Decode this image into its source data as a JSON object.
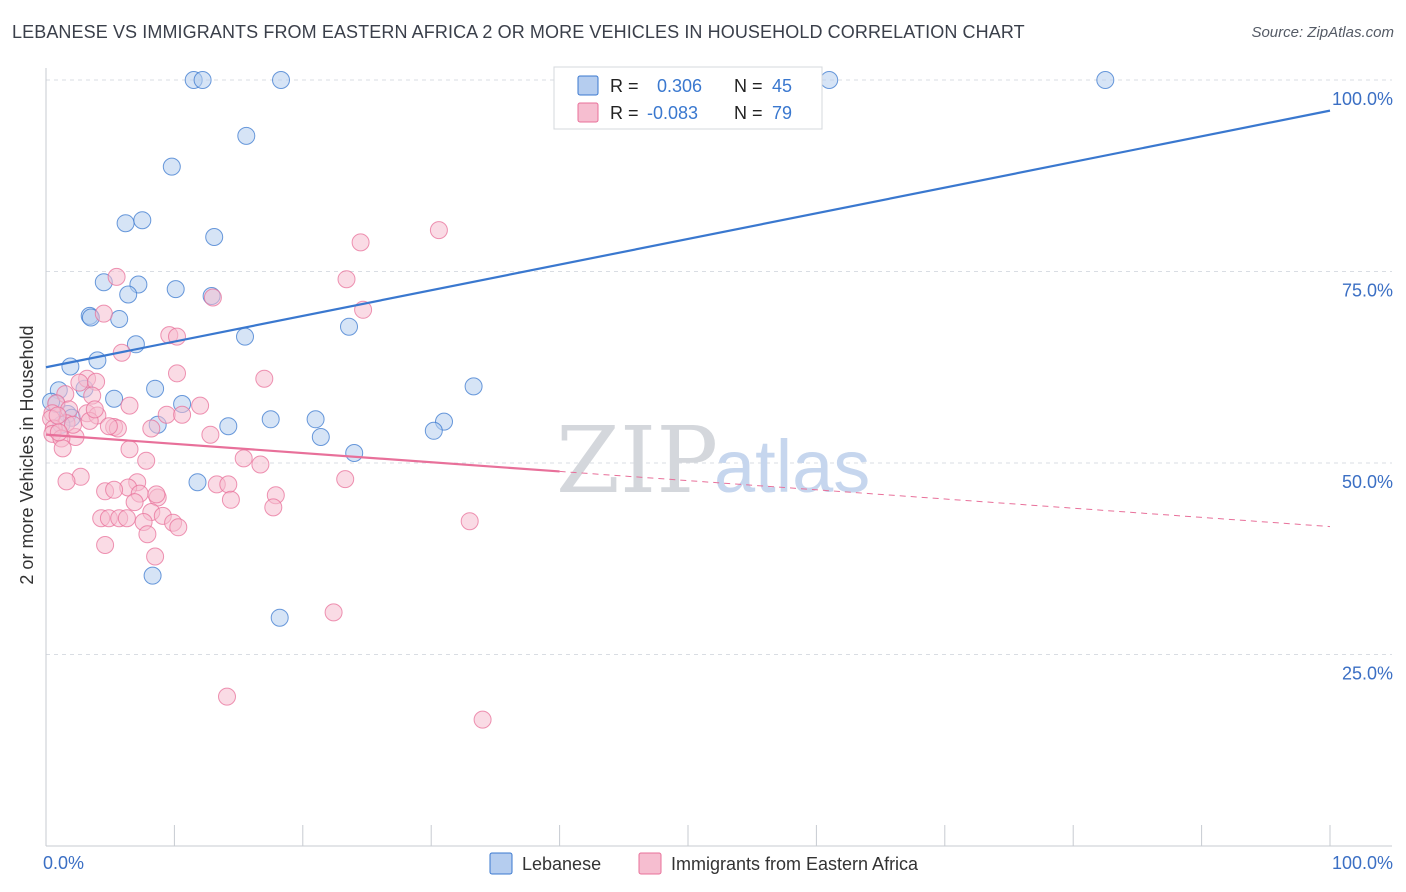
{
  "title": "LEBANESE VS IMMIGRANTS FROM EASTERN AFRICA 2 OR MORE VEHICLES IN HOUSEHOLD CORRELATION CHART",
  "source": "Source: ZipAtlas.com",
  "watermark": {
    "zip": "ZIP",
    "atlas": "atlas"
  },
  "colors": {
    "blue": "#3a78cf",
    "blue_fill": "#b5cdef",
    "pink": "#e8709a",
    "pink_fill": "#f6bed0",
    "axis_label": "#3b6fc4",
    "grid": "#d9dde3"
  },
  "chart_data": {
    "type": "scatter",
    "title": "LEBANESE VS IMMIGRANTS FROM EASTERN AFRICA 2 OR MORE VEHICLES IN HOUSEHOLD CORRELATION CHART",
    "ylabel": "2 or more Vehicles in Household",
    "xlim": [
      0,
      100
    ],
    "ylim": [
      0,
      100
    ],
    "x_tick_labels": [
      "0.0%",
      "100.0%"
    ],
    "y_tick_labels": [
      "100.0%",
      "75.0%",
      "50.0%",
      "25.0%"
    ],
    "y_ticks": [
      100,
      75,
      50,
      25
    ],
    "legend_stats": [
      {
        "r_label": "R =",
        "r_value": "0.306",
        "n_label": "N =",
        "n_value": "45"
      },
      {
        "r_label": "R =",
        "r_value": "-0.083",
        "n_label": "N =",
        "n_value": "79"
      }
    ],
    "series": [
      {
        "name": "Lebanese",
        "trend": {
          "x": [
            0,
            100
          ],
          "y": [
            62.5,
            96.0
          ],
          "dashed_from": null
        },
        "points": [
          [
            11.5,
            100
          ],
          [
            12.2,
            100
          ],
          [
            18.3,
            100
          ],
          [
            61,
            100
          ],
          [
            82.5,
            100
          ],
          [
            15.6,
            92.7
          ],
          [
            9.8,
            88.7
          ],
          [
            6.2,
            81.3
          ],
          [
            7.5,
            81.7
          ],
          [
            13.1,
            79.5
          ],
          [
            4.5,
            73.6
          ],
          [
            7.2,
            73.3
          ],
          [
            10.1,
            72.7
          ],
          [
            6.4,
            72.0
          ],
          [
            12.9,
            71.8
          ],
          [
            3.4,
            69.2
          ],
          [
            3.5,
            69.0
          ],
          [
            5.7,
            68.8
          ],
          [
            23.6,
            67.8
          ],
          [
            15.5,
            66.5
          ],
          [
            7.0,
            65.5
          ],
          [
            4.0,
            63.4
          ],
          [
            1.9,
            62.6
          ],
          [
            1.0,
            59.5
          ],
          [
            3.0,
            59.7
          ],
          [
            8.5,
            59.7
          ],
          [
            33.3,
            60.0
          ],
          [
            5.3,
            58.4
          ],
          [
            0.8,
            57.7
          ],
          [
            0.4,
            58.0
          ],
          [
            10.6,
            57.7
          ],
          [
            1.7,
            56.4
          ],
          [
            2.0,
            55.9
          ],
          [
            1.2,
            55.0
          ],
          [
            17.5,
            55.7
          ],
          [
            21.0,
            55.7
          ],
          [
            31.0,
            55.4
          ],
          [
            14.2,
            54.8
          ],
          [
            8.7,
            55.0
          ],
          [
            30.2,
            54.2
          ],
          [
            21.4,
            53.4
          ],
          [
            24.0,
            51.3
          ],
          [
            11.8,
            47.5
          ],
          [
            8.3,
            35.3
          ],
          [
            18.2,
            29.8
          ]
        ]
      },
      {
        "name": "Immigrants from Eastern Africa",
        "trend": {
          "x": [
            0,
            100
          ],
          "y": [
            53.7,
            41.7
          ],
          "dashed_from": 40
        },
        "points": [
          [
            30.6,
            80.4
          ],
          [
            24.5,
            78.8
          ],
          [
            5.5,
            74.3
          ],
          [
            23.4,
            74.0
          ],
          [
            13.0,
            71.6
          ],
          [
            24.7,
            70.0
          ],
          [
            4.5,
            69.5
          ],
          [
            9.6,
            66.7
          ],
          [
            10.2,
            66.5
          ],
          [
            5.9,
            64.4
          ],
          [
            10.2,
            61.7
          ],
          [
            17.0,
            61.0
          ],
          [
            3.2,
            61.0
          ],
          [
            2.6,
            60.5
          ],
          [
            3.9,
            60.6
          ],
          [
            1.5,
            59.0
          ],
          [
            3.6,
            58.8
          ],
          [
            12.0,
            57.5
          ],
          [
            0.8,
            57.8
          ],
          [
            0.5,
            56.5
          ],
          [
            1.8,
            57.0
          ],
          [
            3.2,
            56.5
          ],
          [
            9.4,
            56.3
          ],
          [
            10.6,
            56.3
          ],
          [
            4.0,
            56.2
          ],
          [
            3.4,
            55.5
          ],
          [
            0.4,
            55.8
          ],
          [
            1.6,
            55.2
          ],
          [
            0.6,
            54.5
          ],
          [
            5.3,
            54.7
          ],
          [
            5.6,
            54.5
          ],
          [
            8.2,
            54.5
          ],
          [
            0.5,
            53.8
          ],
          [
            2.3,
            53.4
          ],
          [
            1.2,
            53.2
          ],
          [
            12.8,
            53.7
          ],
          [
            6.5,
            51.8
          ],
          [
            7.8,
            50.3
          ],
          [
            1.3,
            51.9
          ],
          [
            15.4,
            50.6
          ],
          [
            16.7,
            49.8
          ],
          [
            2.7,
            48.2
          ],
          [
            23.3,
            47.9
          ],
          [
            1.6,
            47.6
          ],
          [
            7.1,
            47.5
          ],
          [
            13.3,
            47.2
          ],
          [
            14.2,
            47.2
          ],
          [
            6.4,
            46.8
          ],
          [
            4.6,
            46.3
          ],
          [
            5.3,
            46.5
          ],
          [
            7.3,
            46.0
          ],
          [
            17.9,
            45.8
          ],
          [
            8.7,
            45.5
          ],
          [
            14.4,
            45.2
          ],
          [
            6.9,
            44.9
          ],
          [
            17.7,
            44.2
          ],
          [
            8.2,
            43.6
          ],
          [
            9.1,
            43.1
          ],
          [
            4.3,
            42.8
          ],
          [
            4.9,
            42.8
          ],
          [
            5.7,
            42.8
          ],
          [
            6.3,
            42.8
          ],
          [
            9.9,
            42.2
          ],
          [
            7.6,
            42.3
          ],
          [
            33.0,
            42.4
          ],
          [
            10.3,
            41.6
          ],
          [
            7.9,
            40.7
          ],
          [
            4.6,
            39.3
          ],
          [
            8.5,
            37.8
          ],
          [
            22.4,
            30.5
          ],
          [
            14.1,
            19.5
          ],
          [
            34.0,
            16.5
          ],
          [
            6.5,
            57.5
          ],
          [
            2.1,
            55.0
          ],
          [
            3.8,
            57.0
          ],
          [
            4.9,
            54.8
          ],
          [
            1.0,
            54.0
          ],
          [
            0.9,
            56.2
          ],
          [
            8.6,
            45.9
          ]
        ]
      }
    ]
  }
}
